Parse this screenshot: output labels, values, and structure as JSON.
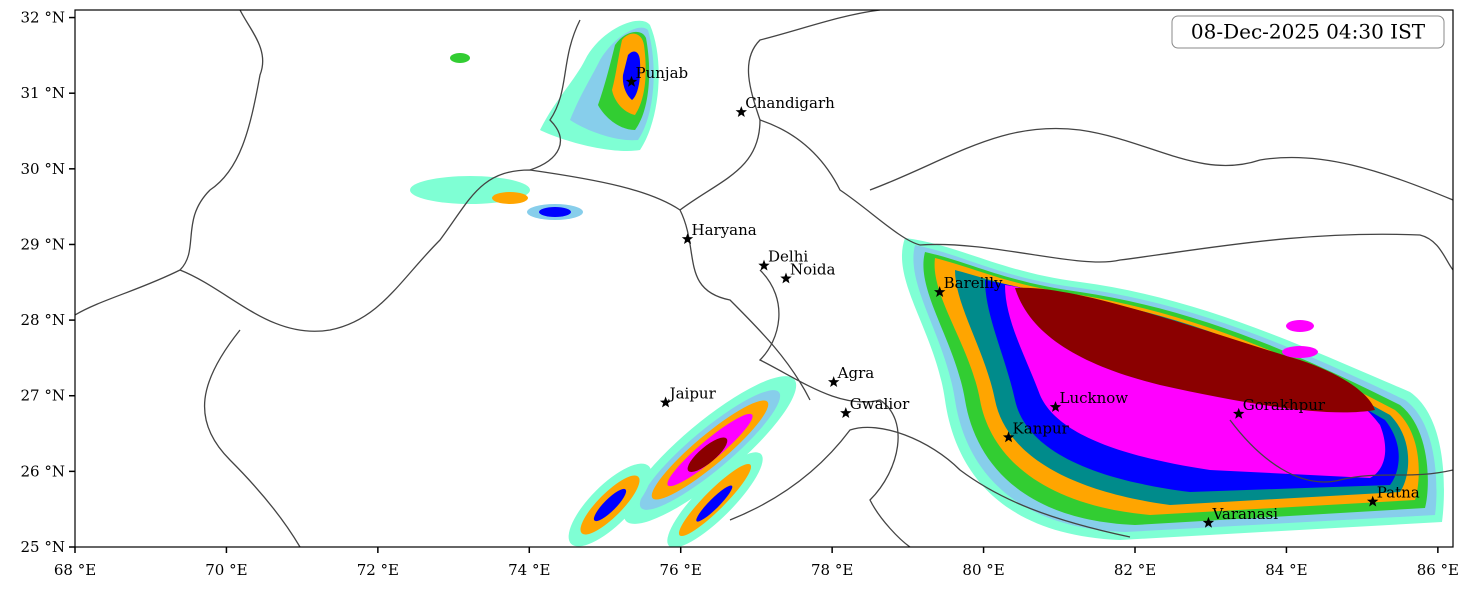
{
  "title": "08-Dec-2025 04:30 IST",
  "map": {
    "lonlim": [
      68,
      86.2
    ],
    "latlim": [
      25,
      32.1
    ],
    "lonticks": [
      {
        "value": 68,
        "label": "68 °E"
      },
      {
        "value": 70,
        "label": "70 °E"
      },
      {
        "value": 72,
        "label": "72 °E"
      },
      {
        "value": 74,
        "label": "74 °E"
      },
      {
        "value": 76,
        "label": "76 °E"
      },
      {
        "value": 78,
        "label": "78 °E"
      },
      {
        "value": 80,
        "label": "80 °E"
      },
      {
        "value": 82,
        "label": "82 °E"
      },
      {
        "value": 84,
        "label": "84 °E"
      },
      {
        "value": 86,
        "label": "86 °E"
      }
    ],
    "latticks": [
      {
        "value": 25,
        "label": "25 °N"
      },
      {
        "value": 26,
        "label": "26 °N"
      },
      {
        "value": 27,
        "label": "27 °N"
      },
      {
        "value": 28,
        "label": "28 °N"
      },
      {
        "value": 29,
        "label": "29 °N"
      },
      {
        "value": 30,
        "label": "30 °N"
      },
      {
        "value": 31,
        "label": "31 °N"
      },
      {
        "value": 32,
        "label": "32 °N"
      }
    ]
  },
  "cities": [
    {
      "name": "Punjab",
      "lon": 75.35,
      "lat": 31.15
    },
    {
      "name": "Chandigarh",
      "lon": 76.8,
      "lat": 30.75
    },
    {
      "name": "Haryana",
      "lon": 76.09,
      "lat": 29.07
    },
    {
      "name": "Delhi",
      "lon": 77.1,
      "lat": 28.72
    },
    {
      "name": "Noida",
      "lon": 77.39,
      "lat": 28.55
    },
    {
      "name": "Bareilly",
      "lon": 79.42,
      "lat": 28.37
    },
    {
      "name": "Agra",
      "lon": 78.02,
      "lat": 27.18
    },
    {
      "name": "Jaipur",
      "lon": 75.8,
      "lat": 26.91
    },
    {
      "name": "Gwalior",
      "lon": 78.18,
      "lat": 26.77
    },
    {
      "name": "Lucknow",
      "lon": 80.95,
      "lat": 26.85
    },
    {
      "name": "Kanpur",
      "lon": 80.33,
      "lat": 26.45
    },
    {
      "name": "Gorakhpur",
      "lon": 83.37,
      "lat": 26.76
    },
    {
      "name": "Varanasi",
      "lon": 82.97,
      "lat": 25.32
    },
    {
      "name": "Patna",
      "lon": 85.14,
      "lat": 25.6
    }
  ]
}
